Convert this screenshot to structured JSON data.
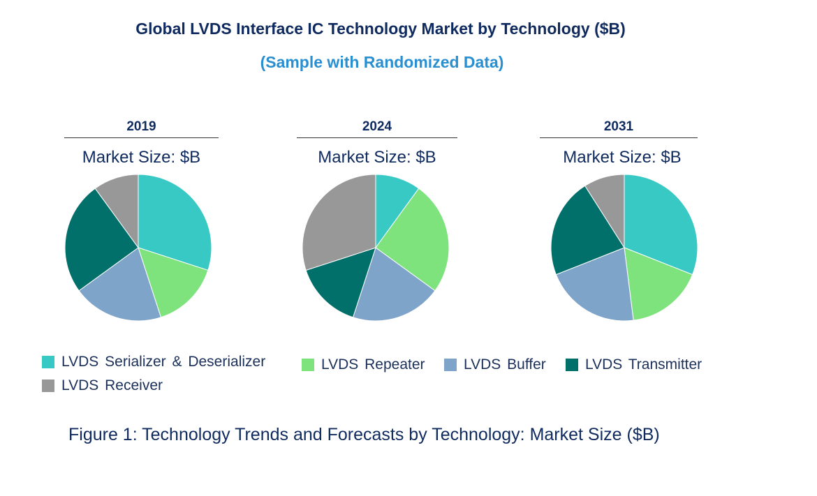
{
  "chart_data": [
    {
      "type": "pie",
      "title": "2019",
      "subtitle": "Market Size: $B",
      "categories": [
        "LVDS Serializer & Deserializer",
        "LVDS Repeater",
        "LVDS Buffer",
        "LVDS Transmitter",
        "LVDS Receiver"
      ],
      "values": [
        30,
        15,
        20,
        25,
        10
      ]
    },
    {
      "type": "pie",
      "title": "2024",
      "subtitle": "Market Size: $B",
      "categories": [
        "LVDS Serializer & Deserializer",
        "LVDS Repeater",
        "LVDS Buffer",
        "LVDS Transmitter",
        "LVDS Receiver"
      ],
      "values": [
        10,
        25,
        20,
        15,
        30
      ]
    },
    {
      "type": "pie",
      "title": "2031",
      "subtitle": "Market Size: $B",
      "categories": [
        "LVDS Serializer & Deserializer",
        "LVDS Repeater",
        "LVDS Buffer",
        "LVDS Transmitter",
        "LVDS Receiver"
      ],
      "values": [
        31,
        17,
        21,
        22,
        9
      ]
    }
  ],
  "header": {
    "title": "Global LVDS Interface IC Technology Market by Technology ($B)",
    "subtitle": "(Sample with Randomized Data)"
  },
  "legend": [
    {
      "label": "LVDS Serializer & Deserializer",
      "color": "#38c9c5"
    },
    {
      "label": "LVDS Repeater",
      "color": "#7ee27d"
    },
    {
      "label": "LVDS Buffer",
      "color": "#7fa4c9"
    },
    {
      "label": "LVDS Transmitter",
      "color": "#02706a"
    },
    {
      "label": "LVDS Receiver",
      "color": "#989898"
    }
  ],
  "caption": "Figure 1: Technology Trends and Forecasts by Technology: Market Size ($B)"
}
